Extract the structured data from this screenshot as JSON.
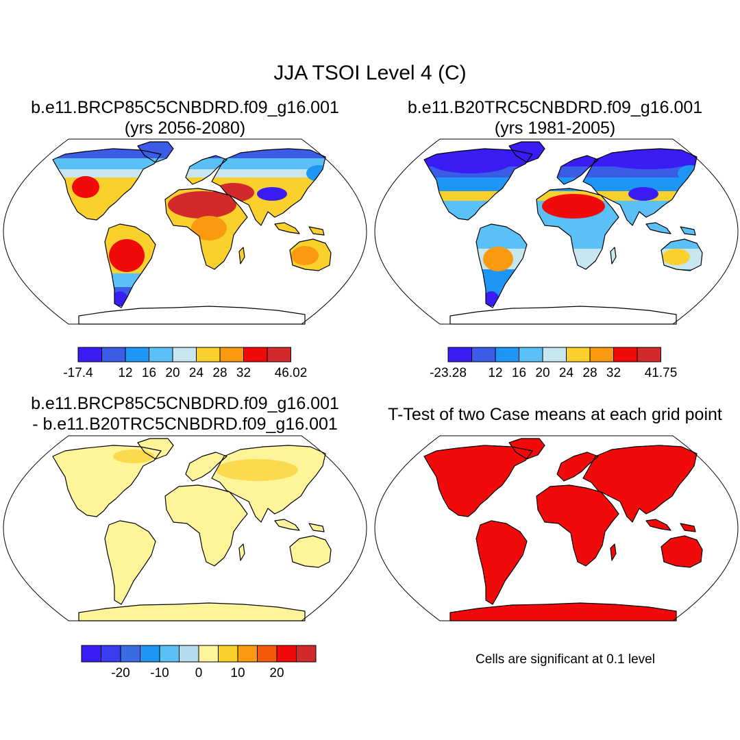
{
  "title": "JJA TSOI Level 4 (C)",
  "panels": [
    {
      "name": "future-case",
      "title_line1": "b.e11.BRCP85C5CNBDRD.f09_g16.001",
      "title_line2": "(yrs 2056-2080)",
      "fill": "warm",
      "colorbar": {
        "colors": [
          "#3a1cf5",
          "#3a5ce6",
          "#1e96f5",
          "#5ac0f5",
          "#c8e6f0",
          "#fad02c",
          "#fa9a10",
          "#f00a0a",
          "#d22a2a"
        ],
        "ticks": [
          {
            "label": "-17.4",
            "boundary": 0
          },
          {
            "label": "12",
            "boundary": 2
          },
          {
            "label": "16",
            "boundary": 3
          },
          {
            "label": "20",
            "boundary": 4
          },
          {
            "label": "24",
            "boundary": 5
          },
          {
            "label": "28",
            "boundary": 6
          },
          {
            "label": "32",
            "boundary": 7
          },
          {
            "label": "46.02",
            "boundary": 9
          }
        ]
      }
    },
    {
      "name": "historical-case",
      "title_line1": "b.e11.B20TRC5CNBDRD.f09_g16.001",
      "title_line2": "(yrs 1981-2005)",
      "fill": "cool",
      "colorbar": {
        "colors": [
          "#3a1cf5",
          "#3a5ce6",
          "#1e96f5",
          "#5ac0f5",
          "#c8e6f0",
          "#fad02c",
          "#fa9a10",
          "#f00a0a",
          "#d22a2a"
        ],
        "ticks": [
          {
            "label": "-23.28",
            "boundary": 0
          },
          {
            "label": "12",
            "boundary": 2
          },
          {
            "label": "16",
            "boundary": 3
          },
          {
            "label": "20",
            "boundary": 4
          },
          {
            "label": "24",
            "boundary": 5
          },
          {
            "label": "28",
            "boundary": 6
          },
          {
            "label": "32",
            "boundary": 7
          },
          {
            "label": "41.75",
            "boundary": 9
          }
        ]
      }
    },
    {
      "name": "difference",
      "title_line1": "b.e11.BRCP85C5CNBDRD.f09_g16.001",
      "title_line2": "- b.e11.B20TRC5CNBDRD.f09_g16.001",
      "fill": "diff",
      "colorbar": {
        "colors": [
          "#3a1cf5",
          "#3a3cf0",
          "#3a6ce6",
          "#1e96f5",
          "#5ac0f5",
          "#b4dcf0",
          "#fef59a",
          "#fad02c",
          "#fa9a10",
          "#f55a0a",
          "#f00a0a",
          "#d22a2a"
        ],
        "ticks": [
          {
            "label": "-20",
            "boundary": 2
          },
          {
            "label": "-10",
            "boundary": 4
          },
          {
            "label": "0",
            "boundary": 6
          },
          {
            "label": "10",
            "boundary": 8
          },
          {
            "label": "20",
            "boundary": 10
          }
        ]
      }
    },
    {
      "name": "t-test",
      "title_line1": "T-Test of two Case means at each grid point",
      "fill": "sig",
      "note": "Cells are significant at 0.1 level"
    }
  ],
  "colors": {
    "land_diff": "#fef59a",
    "land_sig": "#f00a0a",
    "coast": "#000000"
  }
}
